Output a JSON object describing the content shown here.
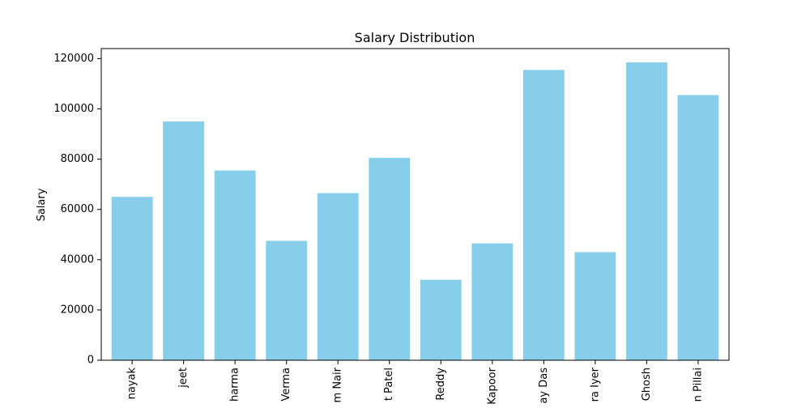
{
  "chart_data": {
    "type": "bar",
    "title": "Salary Distribution",
    "xlabel": "",
    "ylabel": "Salary",
    "ylim": [
      0,
      124000
    ],
    "yticks": [
      0,
      20000,
      40000,
      60000,
      80000,
      100000,
      120000
    ],
    "ytick_labels": [
      "0",
      "20000",
      "40000",
      "60000",
      "80000",
      "100000",
      "120000"
    ],
    "categories": [
      "nayak",
      "jeet",
      "harma",
      "Verma",
      "m Nair",
      "t Patel",
      "Reddy",
      "Kapoor",
      "ay Das",
      "ra Iyer",
      "Ghosh",
      "n Pillai"
    ],
    "values": [
      65000,
      95000,
      75500,
      47500,
      66500,
      80500,
      32000,
      46500,
      115500,
      43000,
      118500,
      105500
    ],
    "bar_color": "#87ceeb",
    "grid": false,
    "legend": "none"
  }
}
